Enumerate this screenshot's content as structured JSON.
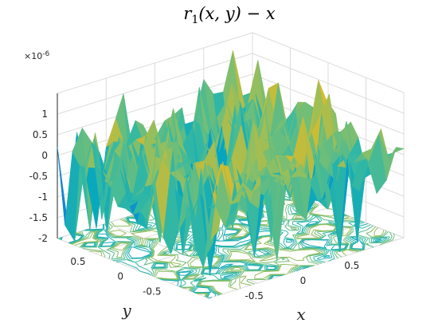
{
  "chart_data": {
    "type": "surface",
    "title": {
      "r": "r",
      "sub": "1",
      "rest": "(x, y) − x"
    },
    "xlabel": "x",
    "ylabel": "y",
    "zlabel": "",
    "z_exponent_label": "×10",
    "z_exponent_power": "-6",
    "xlim": [
      -1,
      1
    ],
    "ylim": [
      -1,
      1
    ],
    "zlim": [
      -2,
      1.5
    ],
    "x_ticks": [
      -0.5,
      0,
      0.5
    ],
    "x_tick_labels": [
      "-0.5",
      "0",
      "0.5"
    ],
    "y_ticks": [
      -0.5,
      0,
      0.5
    ],
    "y_tick_labels": [
      "-0.5",
      "0",
      "0.5"
    ],
    "z_ticks": [
      -2,
      -1.5,
      -1,
      -0.5,
      0,
      0.5,
      1
    ],
    "z_tick_labels": [
      "-2",
      "-1.5",
      "-1",
      "-0.5",
      "0",
      "0.5",
      "1"
    ],
    "grid": true,
    "colormap": "parula",
    "surface_grid": {
      "nx": 21,
      "ny": 21,
      "amplitude": 0.45
    },
    "contour_levels": [
      -1.2,
      -0.8,
      -0.4,
      0.0,
      0.4,
      0.8
    ],
    "colors": {
      "grid": "#dcdcdc",
      "axis": "#262626",
      "edge": "none"
    }
  }
}
